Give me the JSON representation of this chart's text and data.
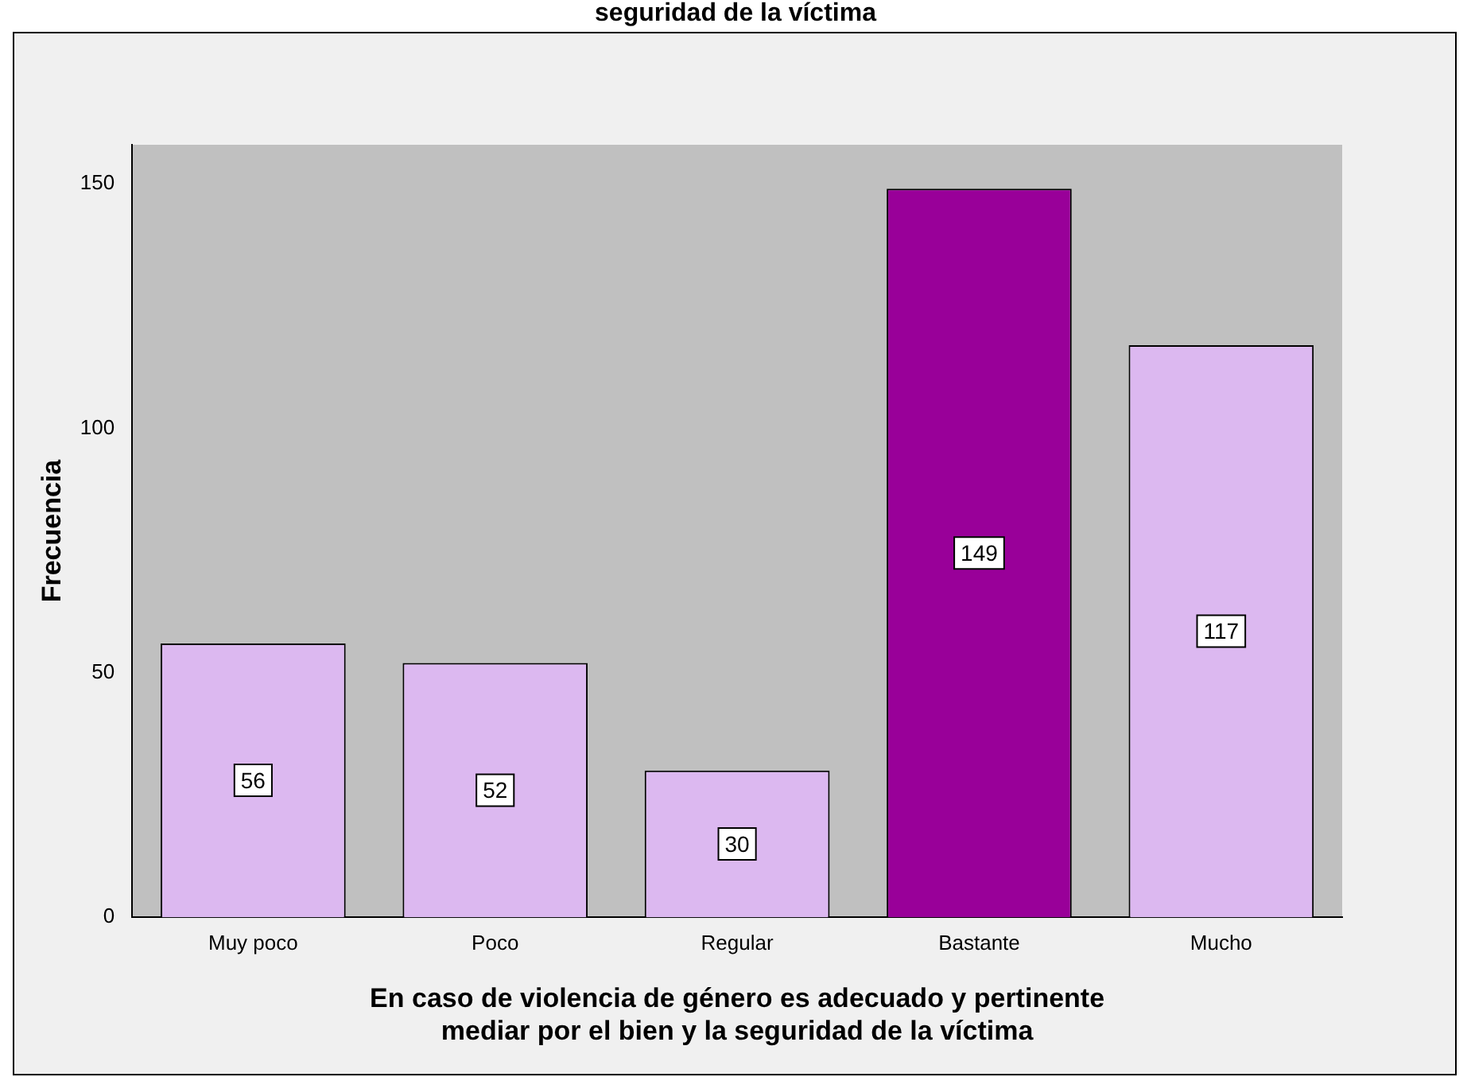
{
  "chart_data": {
    "type": "bar",
    "title": "seguridad de la víctima",
    "xlabel": "En caso de violencia de género es adecuado y pertinente\nmediar por el bien y la seguridad de la víctima",
    "ylabel": "Frecuencia",
    "categories": [
      "Muy poco",
      "Poco",
      "Regular",
      "Bastante",
      "Mucho"
    ],
    "values": [
      56,
      52,
      30,
      149,
      117
    ],
    "colors": [
      "#dcb8f0",
      "#dcb8f0",
      "#dcb8f0",
      "#990099",
      "#dcb8f0"
    ],
    "ylim": [
      0,
      158
    ],
    "yticks": [
      0,
      50,
      100,
      150
    ],
    "grid": false,
    "legend": false,
    "data_labels": true
  }
}
